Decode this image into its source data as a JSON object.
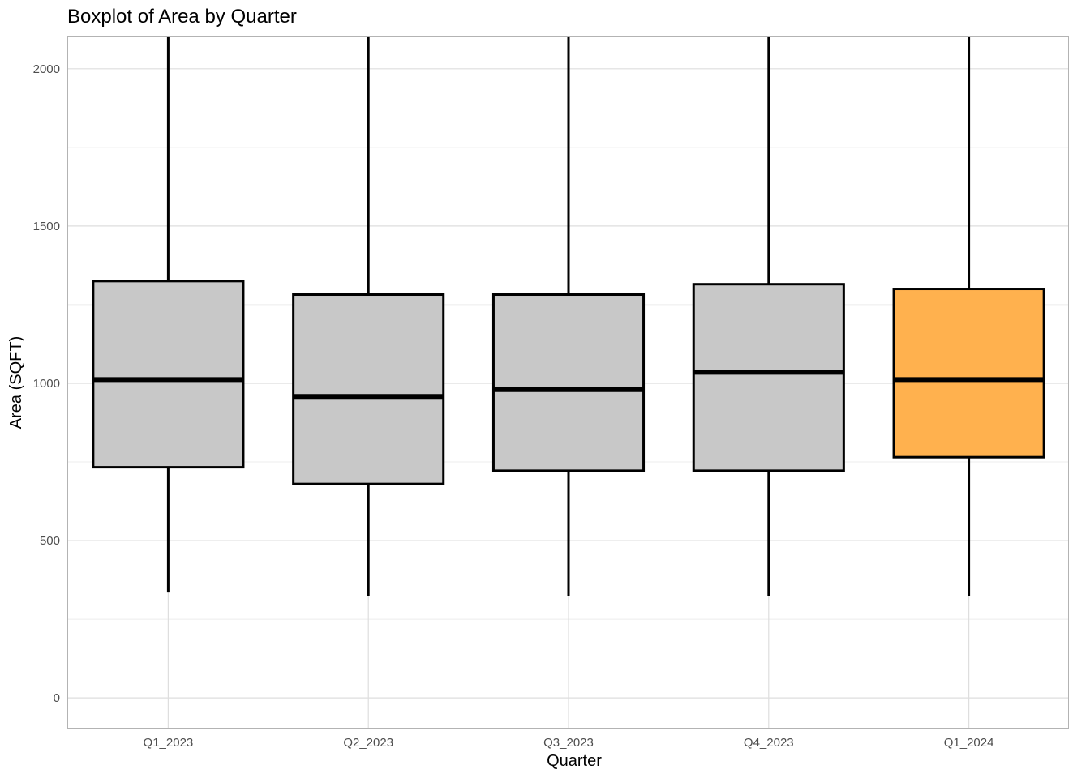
{
  "chart_data": {
    "type": "boxplot",
    "title": "Boxplot of Area by Quarter",
    "xlabel": "Quarter",
    "ylabel": "Area (SQFT)",
    "ylim": [
      -95,
      2100
    ],
    "y_ticks": [
      0,
      500,
      1000,
      1500,
      2000
    ],
    "y_tick_labels": [
      "0",
      "500",
      "1000",
      "1500",
      "2000"
    ],
    "grid": true,
    "categories": [
      "Q1_2023",
      "Q2_2023",
      "Q3_2023",
      "Q4_2023",
      "Q1_2024"
    ],
    "boxes": [
      {
        "category": "Q1_2023",
        "whisker_low": 335,
        "q1": 733,
        "median": 1012,
        "q3": 1325,
        "whisker_high": 2100,
        "fill": "#c8c8c8"
      },
      {
        "category": "Q2_2023",
        "whisker_low": 325,
        "q1": 680,
        "median": 958,
        "q3": 1282,
        "whisker_high": 2100,
        "fill": "#c8c8c8"
      },
      {
        "category": "Q3_2023",
        "whisker_low": 325,
        "q1": 722,
        "median": 980,
        "q3": 1282,
        "whisker_high": 2100,
        "fill": "#c8c8c8"
      },
      {
        "category": "Q4_2023",
        "whisker_low": 325,
        "q1": 722,
        "median": 1035,
        "q3": 1315,
        "whisker_high": 2100,
        "fill": "#c8c8c8"
      },
      {
        "category": "Q1_2024",
        "whisker_low": 325,
        "q1": 765,
        "median": 1012,
        "q3": 1300,
        "whisker_high": 2100,
        "fill": "#ffb14e"
      }
    ],
    "colors": {
      "box_default": "#c8c8c8",
      "box_highlight": "#ffb14e",
      "stroke": "#000000",
      "grid_major": "#dedede",
      "grid_minor": "#ececec",
      "panel_border": "#b3b3b3",
      "tick_label": "#4d4d4d"
    }
  }
}
